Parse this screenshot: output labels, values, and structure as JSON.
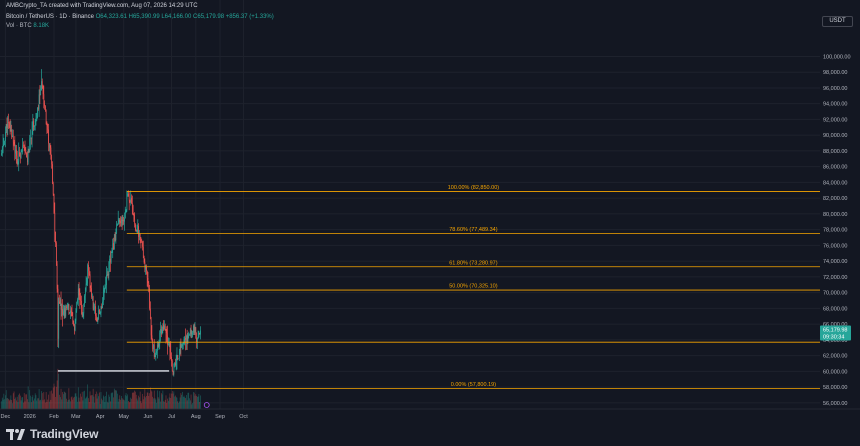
{
  "header": {
    "line1": "AMBCrypto_TA created with TradingView.com, Aug 07, 2026 14:29 UTC",
    "symbol": "Bitcoin / TetherUS · 1D · Binance",
    "ohlc": "O64,323.61  H65,390.99  L64,166.00  C65,179.98  +856.37 (+1.33%)",
    "vol_label": "Vol · BTC",
    "vol_value": "8.18K"
  },
  "price_axis": {
    "unit": "USDT",
    "labels": [
      "100,000.00",
      "98,000.00",
      "96,000.00",
      "94,000.00",
      "92,000.00",
      "90,000.00",
      "88,000.00",
      "86,000.00",
      "84,000.00",
      "82,000.00",
      "80,000.00",
      "78,000.00",
      "76,000.00",
      "74,000.00",
      "72,000.00",
      "70,000.00",
      "68,000.00",
      "66,000.00",
      "64,000.00",
      "62,000.00",
      "60,000.00",
      "58,000.00",
      "56,000.00",
      "54,000.00"
    ]
  },
  "time_axis": {
    "labels": [
      "Dec",
      "2026",
      "Feb",
      "Mar",
      "Apr",
      "May",
      "Jun",
      "Jul",
      "Aug",
      "Sep",
      "Oct"
    ]
  },
  "last_price": {
    "price": "65,179.98",
    "countdown": "09:30:34",
    "color": "#26a69a"
  },
  "brand": {
    "name": "TradingView"
  },
  "colors": {
    "up": "#26a69a",
    "down": "#ef5350",
    "fib": "#f7a600",
    "hline": "#e0e3eb",
    "grid": "#1e222d",
    "axis_text": "#b2b5be"
  },
  "chart_data": {
    "type": "candlestick",
    "title": "Bitcoin / TetherUS · 1D · Binance",
    "xlabel": "",
    "ylabel": "",
    "ylim": [
      53500,
      101000
    ],
    "x_range": [
      "2025-11-26",
      "2026-10-08"
    ],
    "grid": true,
    "fib_levels": [
      {
        "label": "100.00% (82,850.00)",
        "value": 82850.0
      },
      {
        "label": "78.60% (77,489.34)",
        "value": 77489.34
      },
      {
        "label": "61.80% (73,280.97)",
        "value": 73280.97
      },
      {
        "label": "50.00% (70,325.10)",
        "value": 70325.1
      },
      {
        "label": "0.00% (57,800.19)",
        "value": 57800.19
      }
    ],
    "fib_extra_line": {
      "value": 63700
    },
    "fib_start_date": "2026-05-05",
    "support_line": {
      "value": 60050,
      "from": "2026-02-06",
      "to": "2026-06-28"
    },
    "close_path": [
      [
        "2025-11-26",
        87500
      ],
      [
        "2025-12-03",
        91500
      ],
      [
        "2025-12-10",
        90000
      ],
      [
        "2025-12-16",
        86500
      ],
      [
        "2025-12-22",
        88500
      ],
      [
        "2025-12-29",
        87000
      ],
      [
        "2026-01-05",
        91500
      ],
      [
        "2026-01-10",
        92000
      ],
      [
        "2026-01-14",
        95500
      ],
      [
        "2026-01-17",
        96500
      ],
      [
        "2026-01-21",
        93000
      ],
      [
        "2026-01-25",
        89500
      ],
      [
        "2026-01-28",
        87500
      ],
      [
        "2026-01-31",
        82000
      ],
      [
        "2026-02-03",
        76000
      ],
      [
        "2026-02-05",
        71000
      ],
      [
        "2026-02-06",
        63500
      ],
      [
        "2026-02-07",
        69500
      ],
      [
        "2026-02-13",
        67500
      ],
      [
        "2026-02-20",
        68000
      ],
      [
        "2026-02-27",
        65500
      ],
      [
        "2026-03-04",
        70000
      ],
      [
        "2026-03-10",
        67000
      ],
      [
        "2026-03-16",
        73000
      ],
      [
        "2026-03-22",
        69000
      ],
      [
        "2026-03-28",
        66500
      ],
      [
        "2026-04-02",
        68000
      ],
      [
        "2026-04-08",
        71500
      ],
      [
        "2026-04-15",
        74500
      ],
      [
        "2026-04-22",
        78500
      ],
      [
        "2026-05-01",
        79000
      ],
      [
        "2026-05-06",
        82500
      ],
      [
        "2026-05-10",
        81500
      ],
      [
        "2026-05-16",
        78500
      ],
      [
        "2026-05-22",
        77000
      ],
      [
        "2026-05-28",
        73500
      ],
      [
        "2026-06-02",
        70000
      ],
      [
        "2026-06-05",
        65000
      ],
      [
        "2026-06-09",
        62000
      ],
      [
        "2026-06-14",
        63500
      ],
      [
        "2026-06-20",
        66000
      ],
      [
        "2026-06-27",
        63500
      ],
      [
        "2026-07-03",
        60000
      ],
      [
        "2026-07-08",
        61500
      ],
      [
        "2026-07-14",
        63500
      ],
      [
        "2026-07-20",
        64000
      ],
      [
        "2026-07-26",
        65000
      ],
      [
        "2026-07-30",
        65500
      ],
      [
        "2026-08-03",
        63500
      ],
      [
        "2026-08-07",
        65180
      ]
    ]
  }
}
